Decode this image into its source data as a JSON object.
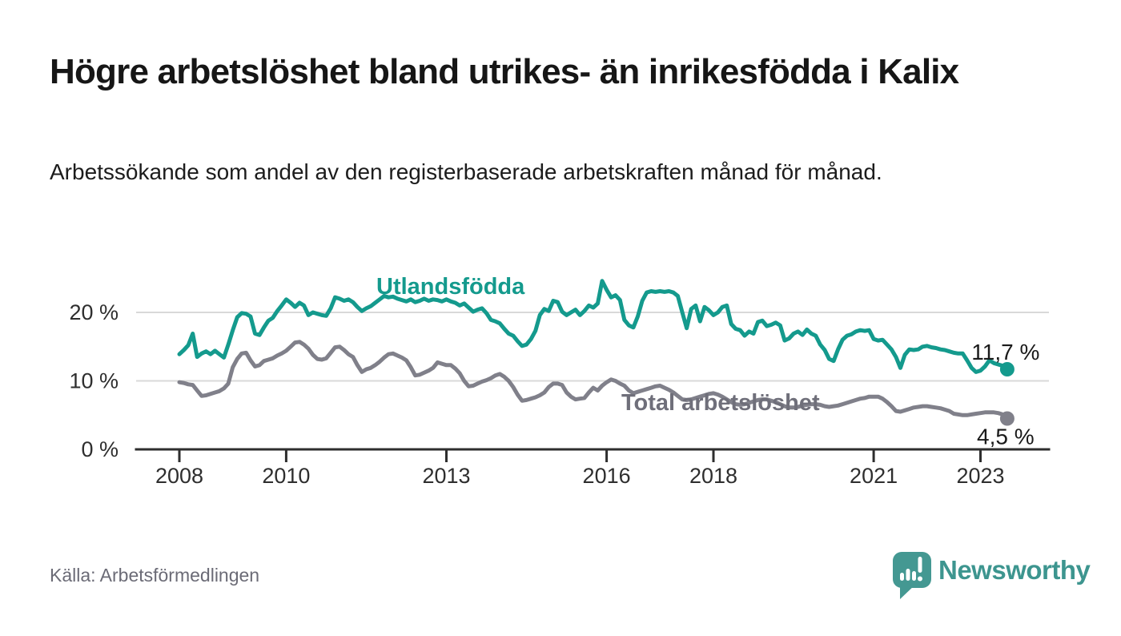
{
  "header": {
    "title": "Högre arbetslöshet bland utrikes- än inrikesfödda i Kalix",
    "subtitle": "Arbetssökande som andel av den registerbaserade arbetskraften månad för månad."
  },
  "footer": {
    "source": "Källa: Arbetsförmedlingen",
    "brand_name": "Newsworthy",
    "brand_icon": "bar-chart-speech-bubble-icon"
  },
  "colors": {
    "accent_teal": "#149a8d",
    "series_gray": "#80808a",
    "series_gray_label": "#6f6f7a",
    "grid": "#d9d9d9",
    "axis": "#2e2e2e",
    "tick_text": "#2e2e2e",
    "value_text": "#1a1a1a",
    "source_text": "#6b6b76",
    "logo_teal": "#449892",
    "logo_wordmark": "#3d958f"
  },
  "chart_data": {
    "type": "line",
    "title": "Högre arbetslöshet bland utrikes- än inrikesfödda i Kalix",
    "subtitle": "Arbetssökande som andel av den registerbaserade arbetskraften månad för månad.",
    "unit": "% av registerbaserad arbetskraft",
    "grid": true,
    "legend_position": "inline-labels",
    "x_axis": {
      "range": [
        2007.2,
        2024.3
      ],
      "ticks": [
        {
          "value": 2008,
          "label": "2008"
        },
        {
          "value": 2010,
          "label": "2010"
        },
        {
          "value": 2013,
          "label": "2013"
        },
        {
          "value": 2016,
          "label": "2016"
        },
        {
          "value": 2018,
          "label": "2018"
        },
        {
          "value": 2021,
          "label": "2021"
        },
        {
          "value": 2023,
          "label": "2023"
        }
      ]
    },
    "y_axis": {
      "range": [
        0,
        25.8
      ],
      "ticks": [
        {
          "value": 0,
          "label": "0 %"
        },
        {
          "value": 10,
          "label": "10 %"
        },
        {
          "value": 20,
          "label": "20 %"
        }
      ]
    },
    "series": [
      {
        "name": "Utlandsfödda",
        "color": "#149a8d",
        "end_label": "11,7 %",
        "end_dot": true,
        "start_year": 2008,
        "interval_months": 1,
        "values": [
          13.9,
          14.5,
          15.2,
          16.9,
          13.5,
          14.0,
          14.3,
          13.9,
          14.4,
          13.9,
          13.4,
          15.3,
          17.4,
          19.3,
          19.9,
          19.8,
          19.4,
          16.9,
          16.7,
          17.8,
          18.8,
          19.2,
          20.2,
          21.0,
          21.9,
          21.4,
          20.8,
          21.4,
          21.0,
          19.6,
          20.0,
          19.8,
          19.6,
          19.5,
          20.6,
          22.2,
          22.0,
          21.7,
          21.9,
          21.5,
          20.8,
          20.2,
          20.6,
          20.9,
          21.4,
          21.9,
          22.4,
          22.2,
          22.3,
          22.0,
          21.8,
          21.6,
          21.9,
          21.5,
          21.7,
          22.0,
          21.7,
          21.9,
          21.8,
          21.6,
          21.9,
          21.6,
          21.4,
          21.0,
          21.3,
          20.7,
          20.1,
          20.4,
          20.6,
          19.9,
          18.9,
          18.7,
          18.4,
          17.6,
          16.9,
          16.6,
          15.8,
          15.1,
          15.3,
          16.1,
          17.3,
          19.6,
          20.5,
          20.2,
          21.7,
          21.5,
          20.1,
          19.6,
          20.0,
          20.4,
          19.6,
          20.2,
          21.0,
          20.7,
          21.3,
          24.6,
          23.3,
          22.2,
          22.5,
          21.8,
          18.9,
          18.1,
          17.8,
          19.4,
          21.7,
          22.9,
          23.1,
          23.0,
          23.1,
          23.0,
          23.1,
          22.9,
          22.4,
          20.0,
          17.7,
          20.5,
          21.0,
          18.7,
          20.8,
          20.3,
          19.6,
          20.0,
          20.8,
          21.0,
          18.3,
          17.6,
          17.4,
          16.6,
          17.2,
          16.9,
          18.6,
          18.8,
          18.0,
          18.2,
          18.5,
          18.1,
          15.9,
          16.2,
          16.9,
          17.2,
          16.7,
          17.5,
          16.9,
          16.6,
          15.3,
          14.5,
          13.2,
          12.9,
          14.6,
          16.0,
          16.6,
          16.8,
          17.2,
          17.4,
          17.3,
          17.4,
          16.1,
          15.9,
          16.0,
          15.3,
          14.6,
          13.5,
          11.9,
          13.8,
          14.6,
          14.5,
          14.6,
          15.0,
          15.1,
          14.9,
          14.8,
          14.6,
          14.5,
          14.3,
          14.1,
          14.0,
          14.0,
          13.0,
          11.9,
          11.3,
          11.5,
          12.1,
          13.0,
          12.6,
          12.4,
          12.2,
          11.7
        ]
      },
      {
        "name": "Total arbetslöshet",
        "color": "#80808a",
        "end_label": "4,5 %",
        "end_dot": true,
        "start_year": 2008,
        "interval_months": 1,
        "values": [
          9.8,
          9.7,
          9.5,
          9.4,
          8.6,
          7.8,
          7.9,
          8.1,
          8.3,
          8.5,
          8.9,
          9.6,
          12.0,
          13.2,
          14.0,
          14.1,
          13.0,
          12.1,
          12.3,
          12.9,
          13.1,
          13.3,
          13.7,
          14.0,
          14.4,
          15.0,
          15.6,
          15.7,
          15.3,
          14.7,
          13.8,
          13.2,
          13.1,
          13.3,
          14.1,
          14.9,
          15.0,
          14.5,
          13.9,
          13.5,
          12.3,
          11.3,
          11.7,
          11.9,
          12.3,
          12.8,
          13.4,
          13.9,
          14.0,
          13.7,
          13.4,
          13.0,
          12.0,
          10.8,
          10.9,
          11.2,
          11.5,
          11.9,
          12.7,
          12.5,
          12.3,
          12.3,
          11.8,
          11.1,
          10.0,
          9.2,
          9.3,
          9.6,
          9.9,
          10.1,
          10.4,
          10.8,
          11.0,
          10.6,
          10.0,
          9.1,
          8.0,
          7.1,
          7.2,
          7.4,
          7.6,
          7.9,
          8.3,
          9.1,
          9.6,
          9.6,
          9.4,
          8.3,
          7.7,
          7.3,
          7.4,
          7.5,
          8.3,
          9.0,
          8.6,
          9.3,
          9.8,
          10.2,
          10.0,
          9.6,
          9.3,
          8.6,
          8.2,
          8.4,
          8.6,
          8.8,
          9.0,
          9.2,
          9.3,
          9.0,
          8.7,
          8.3,
          7.8,
          7.3,
          7.2,
          7.3,
          7.5,
          7.7,
          7.9,
          8.1,
          8.2,
          8.0,
          7.7,
          7.3,
          6.9,
          6.6,
          6.5,
          6.6,
          6.8,
          7.0,
          7.2,
          7.3,
          7.3,
          7.1,
          6.9,
          6.6,
          6.3,
          6.1,
          6.1,
          6.2,
          6.4,
          6.5,
          6.6,
          6.6,
          6.5,
          6.3,
          6.2,
          6.3,
          6.4,
          6.6,
          6.8,
          7.0,
          7.2,
          7.4,
          7.5,
          7.7,
          7.7,
          7.7,
          7.4,
          6.9,
          6.3,
          5.6,
          5.5,
          5.7,
          5.9,
          6.1,
          6.2,
          6.3,
          6.3,
          6.2,
          6.1,
          6.0,
          5.8,
          5.6,
          5.2,
          5.1,
          5.0,
          5.0,
          5.1,
          5.2,
          5.3,
          5.4,
          5.4,
          5.4,
          5.3,
          5.1,
          4.5
        ]
      }
    ]
  }
}
